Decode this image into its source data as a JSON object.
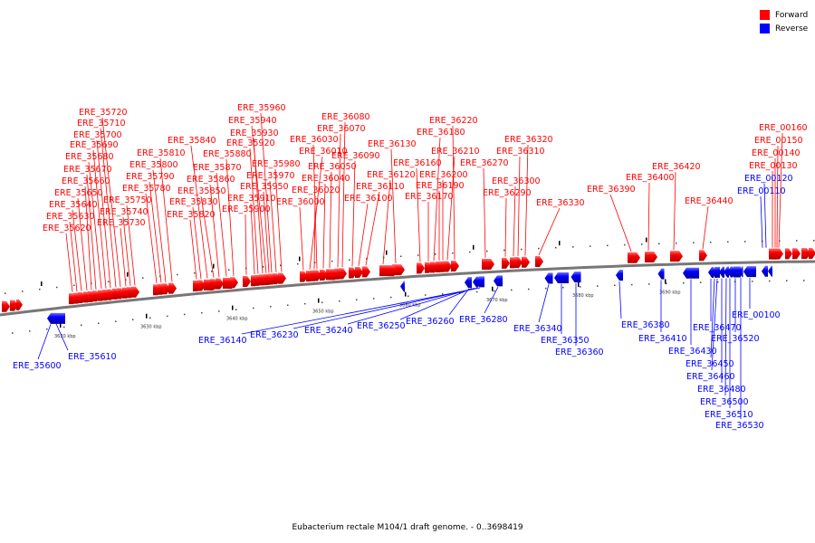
{
  "legend": {
    "forward_label": "Forward",
    "reverse_label": "Reverse",
    "forward_color": "#ff0000",
    "reverse_color": "#0000ff"
  },
  "caption": "Eubacterium rectale M104/1 draft genome. - 0..3698419",
  "axis_labels": [
    "3620 kbp",
    "3630 kbp",
    "3640 kbp",
    "3650 kbp",
    "3660 kbp",
    "3670 kbp",
    "3680 kbp",
    "3690 kbp"
  ],
  "forward_genes": [
    "ERE_35720",
    "ERE_35710",
    "ERE_35700",
    "ERE_35690",
    "ERE_35680",
    "ERE_35670",
    "ERE_35660",
    "ERE_35650",
    "ERE_35640",
    "ERE_35630",
    "ERE_35620",
    "ERE_35750",
    "ERE_35740",
    "ERE_35730",
    "ERE_35810",
    "ERE_35800",
    "ERE_35790",
    "ERE_35780",
    "ERE_35840",
    "ERE_35830",
    "ERE_35820",
    "ERE_35880",
    "ERE_35870",
    "ERE_35860",
    "ERE_35850",
    "ERE_35960",
    "ERE_35940",
    "ERE_35930",
    "ERE_35920",
    "ERE_35980",
    "ERE_35970",
    "ERE_35950",
    "ERE_35910",
    "ERE_35900",
    "ERE_36080",
    "ERE_36070",
    "ERE_36030",
    "ERE_36010",
    "ERE_36050",
    "ERE_36040",
    "ERE_36020",
    "ERE_36000",
    "ERE_36090",
    "ERE_36110",
    "ERE_36100",
    "ERE_36130",
    "ERE_36120",
    "ERE_36160",
    "ERE_36170",
    "ERE_36220",
    "ERE_36180",
    "ERE_36210",
    "ERE_36200",
    "ERE_36190",
    "ERE_36270",
    "ERE_36320",
    "ERE_36310",
    "ERE_36300",
    "ERE_36290",
    "ERE_36330",
    "ERE_36390",
    "ERE_36400",
    "ERE_36420",
    "ERE_36440",
    "ERE_00160",
    "ERE_00150",
    "ERE_00140",
    "ERE_00130"
  ],
  "reverse_genes_top": [
    "ERE_00120",
    "ERE_00110"
  ],
  "reverse_genes": [
    "ERE_35600",
    "ERE_35610",
    "ERE_36140",
    "ERE_36230",
    "ERE_36240",
    "ERE_36250",
    "ERE_36260",
    "ERE_36280",
    "ERE_36340",
    "ERE_36350",
    "ERE_36360",
    "ERE_36380",
    "ERE_36410",
    "ERE_36430",
    "ERE_36450",
    "ERE_36460",
    "ERE_36470",
    "ERE_36480",
    "ERE_36500",
    "ERE_36510",
    "ERE_36520",
    "ERE_36530",
    "ERE_00100"
  ]
}
